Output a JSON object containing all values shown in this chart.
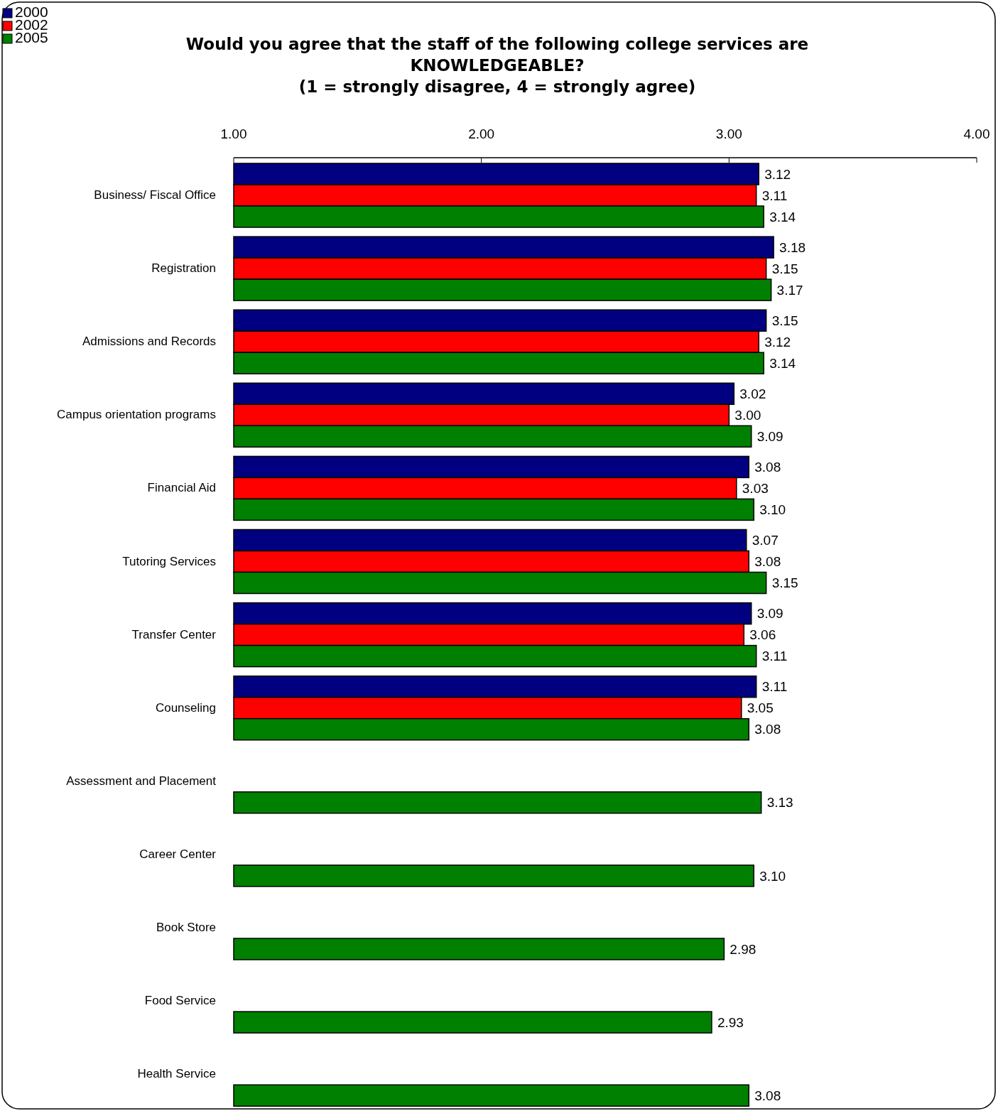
{
  "chart_data": {
    "type": "bar",
    "orientation": "horizontal",
    "title": "Would you agree that the staff of the following college services are\nKNOWLEDGEABLE?\n(1 = strongly disagree, 4 = strongly agree)",
    "categories": [
      "Business/ Fiscal Office",
      "Registration",
      "Admissions and Records",
      "Campus orientation programs",
      "Financial Aid",
      "Tutoring Services",
      "Transfer Center",
      "Counseling",
      "Assessment and Placement",
      "Career Center",
      "Book Store",
      "Food Service",
      "Health Service"
    ],
    "series": [
      {
        "name": "2000",
        "color": "#000080",
        "values": [
          3.12,
          3.18,
          3.15,
          3.02,
          3.08,
          3.07,
          3.09,
          3.11,
          null,
          null,
          null,
          null,
          null
        ],
        "value_labels": [
          "3.12",
          "3.18",
          "3.15",
          "3.02",
          "3.08",
          "3.07",
          "3.09",
          "3.11",
          null,
          null,
          null,
          null,
          null
        ]
      },
      {
        "name": "2002",
        "color": "#ff0000",
        "values": [
          3.11,
          3.15,
          3.12,
          3.0,
          3.03,
          3.08,
          3.06,
          3.05,
          null,
          null,
          null,
          null,
          null
        ],
        "value_labels": [
          "3.11",
          "3.15",
          "3.12",
          "3.00",
          "3.03",
          "3.08",
          "3.06",
          "3.05",
          null,
          null,
          null,
          null,
          null
        ]
      },
      {
        "name": "2005",
        "color": "#008000",
        "values": [
          3.14,
          3.17,
          3.14,
          3.09,
          3.1,
          3.15,
          3.11,
          3.08,
          3.13,
          3.1,
          2.98,
          2.93,
          3.08
        ],
        "value_labels": [
          "3.14",
          "3.17",
          "3.14",
          "3.09",
          "3.10",
          "3.15",
          "3.11",
          "3.08",
          "3.13",
          "3.10",
          "2.98",
          "2.93",
          "3.08"
        ]
      }
    ],
    "xlim": [
      1,
      4
    ],
    "xticks": [
      {
        "value": 1,
        "label": "1.00"
      },
      {
        "value": 2,
        "label": "2.00"
      },
      {
        "value": 3,
        "label": "3.00"
      },
      {
        "value": 4,
        "label": "4.00"
      }
    ],
    "grid": false,
    "legend": "top left"
  }
}
